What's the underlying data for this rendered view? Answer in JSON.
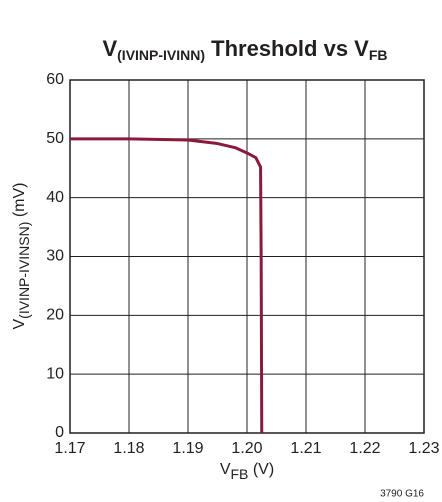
{
  "chart_data": {
    "type": "line",
    "title": [
      "V",
      "(IVINP-IVINN)",
      " Threshold vs V",
      "FB"
    ],
    "x_label": [
      "V",
      "FB",
      " (V)"
    ],
    "y_label": [
      "V",
      "(IVINP-IVINSN)",
      " (mV)"
    ],
    "annotation": "3790 G16",
    "x": [
      1.17,
      1.18,
      1.19,
      1.195,
      1.198,
      1.2,
      1.2015,
      1.2023,
      1.2024,
      1.2025
    ],
    "series": [
      {
        "name": "Threshold",
        "color": "#8b1a3a",
        "values": [
          50,
          50,
          49.8,
          49.2,
          48.5,
          47.6,
          46.8,
          45.2,
          30,
          0
        ]
      }
    ],
    "xlim": [
      1.17,
      1.23
    ],
    "xticks": [
      1.17,
      1.18,
      1.19,
      {
        "value": 1.2,
        "label": "1.20"
      },
      1.21,
      1.22,
      1.23
    ],
    "ylim": [
      0,
      60
    ],
    "yticks": [
      0,
      10,
      20,
      30,
      40,
      50,
      60
    ],
    "grid": true
  }
}
